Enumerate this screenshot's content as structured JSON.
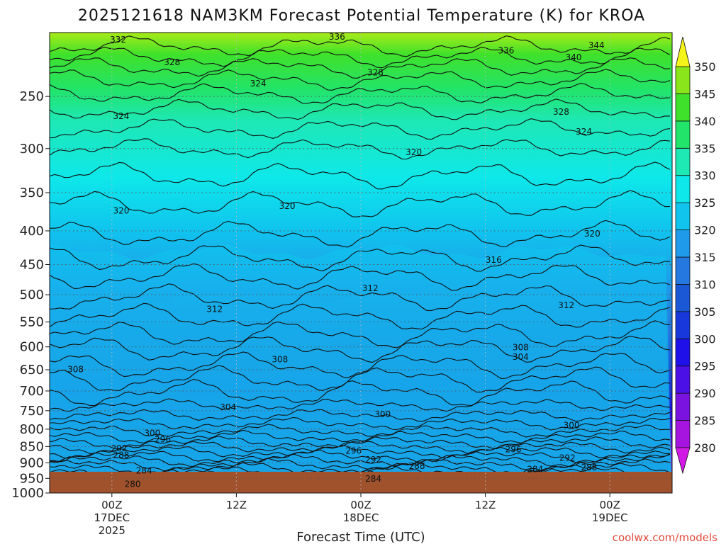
{
  "chart_data": {
    "type": "heatmap",
    "title": "2025121618 NAM3KM Forecast Potential Temperature (K) for KROA",
    "xlabel": "Forecast Time (UTC)",
    "ylabel": "",
    "credit": "coolwx.com/models",
    "y_axis": {
      "units": "hPa",
      "range": [
        1000,
        200
      ],
      "ticks": [
        250,
        300,
        350,
        400,
        450,
        500,
        550,
        600,
        650,
        700,
        750,
        800,
        850,
        900,
        950,
        1000
      ]
    },
    "x_axis": {
      "units": "forecast hour",
      "range": [
        0,
        60
      ],
      "ticks": [
        {
          "hour": 6,
          "label": "00Z",
          "sub": "17DEC",
          "sub2": "2025"
        },
        {
          "hour": 18,
          "label": "12Z",
          "sub": "",
          "sub2": ""
        },
        {
          "hour": 30,
          "label": "00Z",
          "sub": "18DEC",
          "sub2": ""
        },
        {
          "hour": 42,
          "label": "12Z",
          "sub": "",
          "sub2": ""
        },
        {
          "hour": 54,
          "label": "00Z",
          "sub": "19DEC",
          "sub2": ""
        }
      ]
    },
    "colorbar": {
      "units": "K",
      "levels": [
        280,
        285,
        290,
        295,
        300,
        305,
        310,
        315,
        320,
        325,
        330,
        335,
        340,
        345,
        350
      ],
      "colors": [
        "#d21ae6",
        "#a615e0",
        "#7a12e0",
        "#4b10e6",
        "#1f0fe8",
        "#1838dc",
        "#1a58d6",
        "#2478e0",
        "#1f99ea",
        "#10c4ee",
        "#0ee8ea",
        "#1ee8b4",
        "#22e46a",
        "#3fe12b",
        "#8ae61a",
        "#c8ec12",
        "#f4f41a"
      ]
    },
    "surface_color": "#a0522d",
    "grid_color": "#555555",
    "contour_labels": [
      {
        "value": 332,
        "hour": 6.6,
        "p": 205
      },
      {
        "value": 336,
        "hour": 27.7,
        "p": 203
      },
      {
        "value": 336,
        "hour": 44.0,
        "p": 213
      },
      {
        "value": 340,
        "hour": 50.5,
        "p": 218
      },
      {
        "value": 344,
        "hour": 52.7,
        "p": 209
      },
      {
        "value": 328,
        "hour": 11.8,
        "p": 222
      },
      {
        "value": 328,
        "hour": 31.4,
        "p": 230
      },
      {
        "value": 328,
        "hour": 49.3,
        "p": 264
      },
      {
        "value": 324,
        "hour": 20.1,
        "p": 239
      },
      {
        "value": 324,
        "hour": 6.9,
        "p": 268
      },
      {
        "value": 324,
        "hour": 51.5,
        "p": 283
      },
      {
        "value": 320,
        "hour": 35.1,
        "p": 304
      },
      {
        "value": 320,
        "hour": 22.9,
        "p": 367
      },
      {
        "value": 320,
        "hour": 6.9,
        "p": 373
      },
      {
        "value": 320,
        "hour": 52.3,
        "p": 404
      },
      {
        "value": 316,
        "hour": 42.8,
        "p": 443
      },
      {
        "value": 312,
        "hour": 30.9,
        "p": 489
      },
      {
        "value": 312,
        "hour": 15.9,
        "p": 526
      },
      {
        "value": 312,
        "hour": 49.8,
        "p": 519
      },
      {
        "value": 308,
        "hour": 45.4,
        "p": 601
      },
      {
        "value": 304,
        "hour": 45.4,
        "p": 622
      },
      {
        "value": 308,
        "hour": 22.2,
        "p": 627
      },
      {
        "value": 308,
        "hour": 2.5,
        "p": 649
      },
      {
        "value": 304,
        "hour": 17.2,
        "p": 741
      },
      {
        "value": 300,
        "hour": 32.1,
        "p": 760
      },
      {
        "value": 300,
        "hour": 50.3,
        "p": 789
      },
      {
        "value": 300,
        "hour": 9.9,
        "p": 811
      },
      {
        "value": 296,
        "hour": 10.9,
        "p": 830
      },
      {
        "value": 296,
        "hour": 29.3,
        "p": 863
      },
      {
        "value": 296,
        "hour": 44.7,
        "p": 859
      },
      {
        "value": 292,
        "hour": 6.7,
        "p": 856
      },
      {
        "value": 292,
        "hour": 31.2,
        "p": 890
      },
      {
        "value": 292,
        "hour": 49.9,
        "p": 885
      },
      {
        "value": 288,
        "hour": 6.9,
        "p": 876
      },
      {
        "value": 288,
        "hour": 35.4,
        "p": 910
      },
      {
        "value": 288,
        "hour": 52.0,
        "p": 915
      },
      {
        "value": 284,
        "hour": 9.1,
        "p": 925
      },
      {
        "value": 284,
        "hour": 46.8,
        "p": 920
      },
      {
        "value": 284,
        "hour": 31.2,
        "p": 952
      },
      {
        "value": 280,
        "hour": 8.0,
        "p": 970
      }
    ]
  }
}
